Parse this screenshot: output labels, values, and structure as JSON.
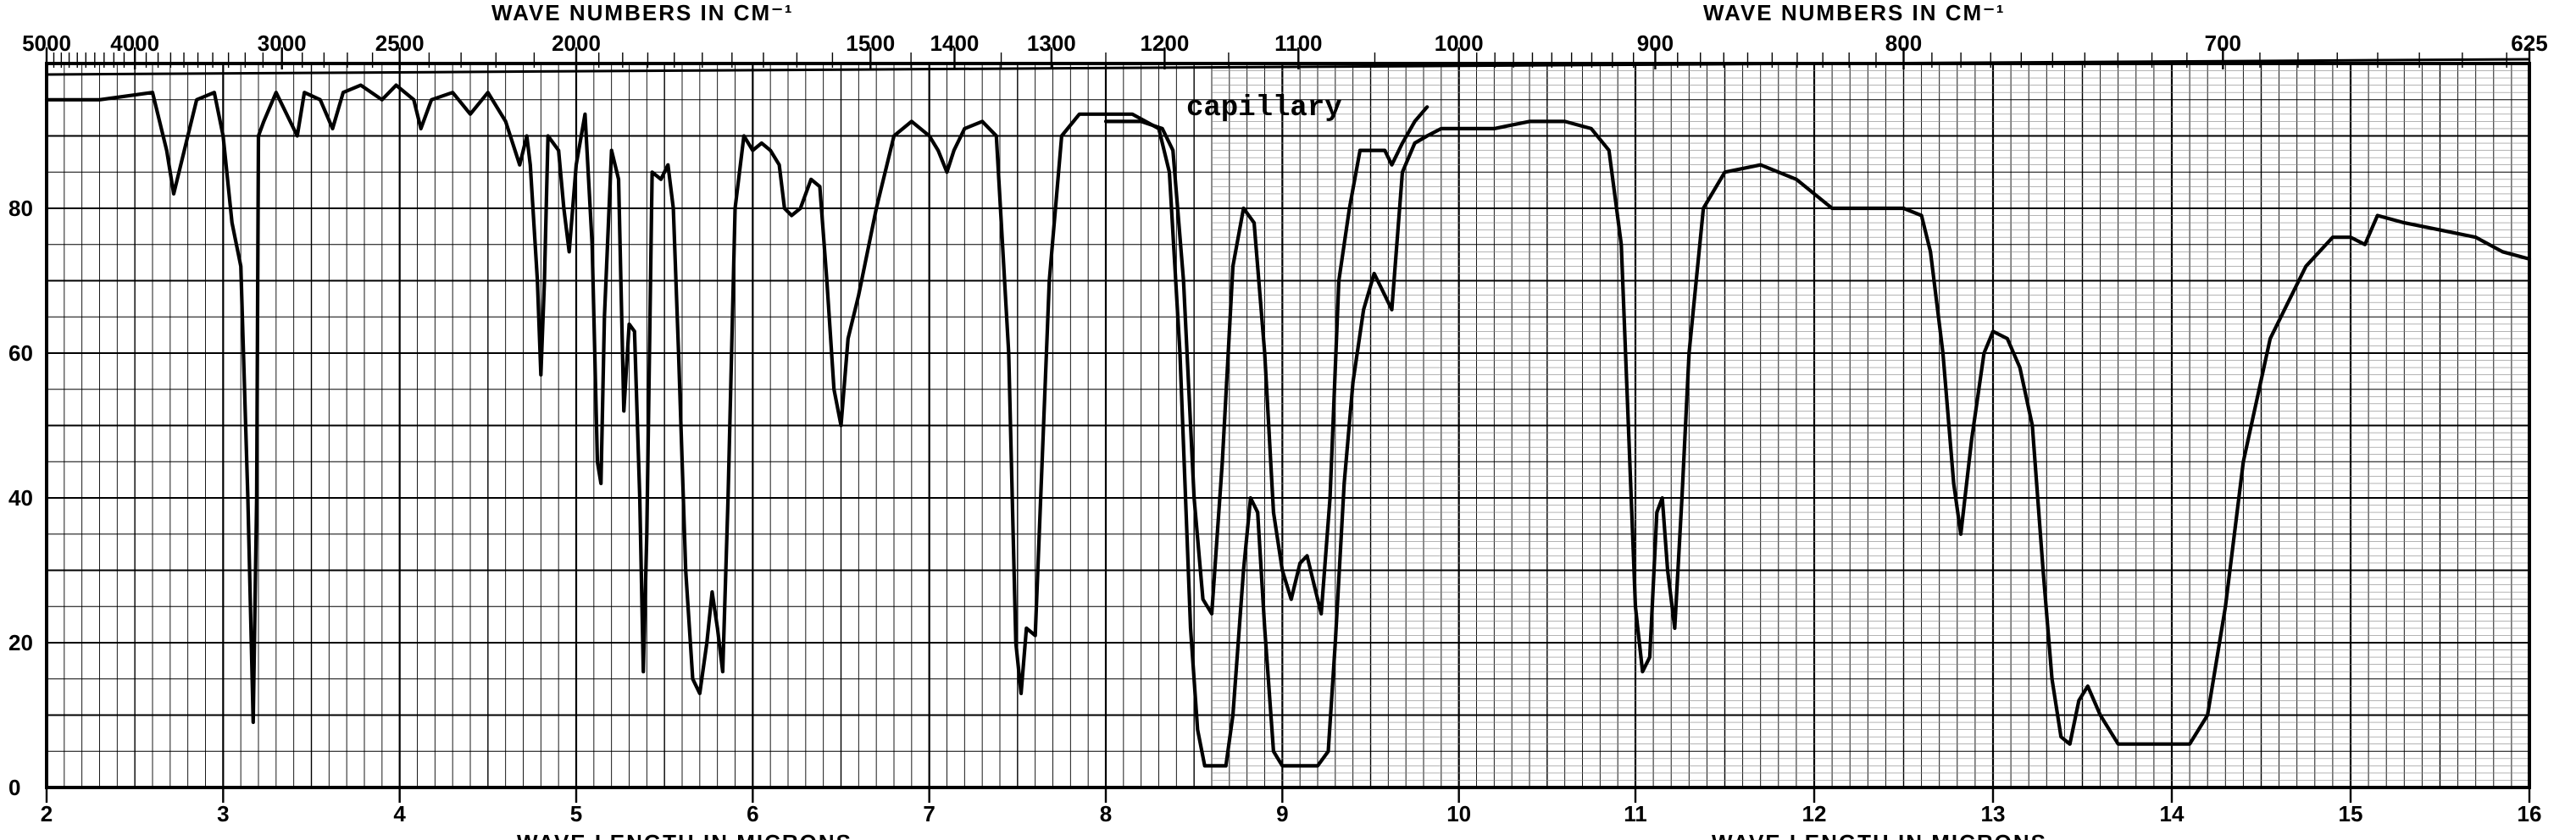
{
  "chart_data": {
    "type": "line",
    "title_top": "WAVE NUMBERS IN CM⁻¹",
    "title_bottom": "WAVE LENGTH IN MICRONS",
    "annotation": "capillary",
    "x_unit": "microns",
    "xlim": [
      2,
      16
    ],
    "ylim": [
      0,
      100
    ],
    "grid": true,
    "y_ticks": [
      "0",
      "20",
      "40",
      "60",
      "80"
    ],
    "x_ticks_bottom": [
      {
        "v": 2,
        "label": "2"
      },
      {
        "v": 3,
        "label": "3"
      },
      {
        "v": 4,
        "label": "4"
      },
      {
        "v": 5,
        "label": "5"
      },
      {
        "v": 6,
        "label": "6"
      },
      {
        "v": 7,
        "label": "7"
      },
      {
        "v": 8,
        "label": "8"
      },
      {
        "v": 9,
        "label": "9"
      },
      {
        "v": 10,
        "label": "10"
      },
      {
        "v": 11,
        "label": "11"
      },
      {
        "v": 12,
        "label": "12"
      },
      {
        "v": 13,
        "label": "13"
      },
      {
        "v": 14,
        "label": "14"
      },
      {
        "v": 15,
        "label": "15"
      },
      {
        "v": 16,
        "label": "16"
      }
    ],
    "x_ticks_top": [
      {
        "v": 2.0,
        "label": "5000"
      },
      {
        "v": 2.5,
        "label": "4000"
      },
      {
        "v": 3.333,
        "label": "3000"
      },
      {
        "v": 4.0,
        "label": "2500"
      },
      {
        "v": 5.0,
        "label": "2000"
      },
      {
        "v": 6.667,
        "label": "1500"
      },
      {
        "v": 7.143,
        "label": "1400"
      },
      {
        "v": 7.692,
        "label": "1300"
      },
      {
        "v": 8.333,
        "label": "1200"
      },
      {
        "v": 9.091,
        "label": "1100"
      },
      {
        "v": 10.0,
        "label": "1000"
      },
      {
        "v": 11.111,
        "label": "900"
      },
      {
        "v": 12.5,
        "label": "800"
      },
      {
        "v": 14.286,
        "label": "700"
      },
      {
        "v": 16.0,
        "label": "625"
      }
    ],
    "series": [
      {
        "values": [
          [
            2.0,
            95
          ],
          [
            2.3,
            95
          ],
          [
            2.6,
            96
          ],
          [
            2.68,
            88
          ],
          [
            2.72,
            82
          ],
          [
            2.78,
            88
          ],
          [
            2.85,
            95
          ],
          [
            2.95,
            96
          ],
          [
            3.0,
            90
          ],
          [
            3.05,
            78
          ],
          [
            3.1,
            72
          ],
          [
            3.14,
            40
          ],
          [
            3.17,
            9
          ],
          [
            3.19,
            40
          ],
          [
            3.2,
            90
          ],
          [
            3.23,
            92
          ],
          [
            3.3,
            96
          ],
          [
            3.38,
            92
          ],
          [
            3.42,
            90
          ],
          [
            3.46,
            96
          ],
          [
            3.55,
            95
          ],
          [
            3.62,
            91
          ],
          [
            3.68,
            96
          ],
          [
            3.78,
            97
          ],
          [
            3.9,
            95
          ],
          [
            3.98,
            97
          ],
          [
            4.08,
            95
          ],
          [
            4.12,
            91
          ],
          [
            4.18,
            95
          ],
          [
            4.3,
            96
          ],
          [
            4.4,
            93
          ],
          [
            4.5,
            96
          ],
          [
            4.6,
            92
          ],
          [
            4.68,
            86
          ],
          [
            4.72,
            90
          ],
          [
            4.74,
            86
          ],
          [
            4.78,
            70
          ],
          [
            4.8,
            57
          ],
          [
            4.82,
            70
          ],
          [
            4.84,
            90
          ],
          [
            4.9,
            88
          ],
          [
            4.93,
            80
          ],
          [
            4.96,
            74
          ],
          [
            5.0,
            86
          ],
          [
            5.05,
            93
          ],
          [
            5.09,
            75
          ],
          [
            5.12,
            45
          ],
          [
            5.14,
            42
          ],
          [
            5.16,
            65
          ],
          [
            5.2,
            88
          ],
          [
            5.24,
            84
          ],
          [
            5.27,
            52
          ],
          [
            5.3,
            64
          ],
          [
            5.33,
            63
          ],
          [
            5.36,
            40
          ],
          [
            5.38,
            16
          ],
          [
            5.4,
            35
          ],
          [
            5.43,
            85
          ],
          [
            5.48,
            84
          ],
          [
            5.52,
            86
          ],
          [
            5.55,
            80
          ],
          [
            5.58,
            60
          ],
          [
            5.62,
            30
          ],
          [
            5.66,
            15
          ],
          [
            5.7,
            13
          ],
          [
            5.74,
            20
          ],
          [
            5.77,
            27
          ],
          [
            5.8,
            22
          ],
          [
            5.83,
            16
          ],
          [
            5.86,
            40
          ],
          [
            5.9,
            80
          ],
          [
            5.95,
            90
          ],
          [
            6.0,
            88
          ],
          [
            6.05,
            89
          ],
          [
            6.1,
            88
          ],
          [
            6.15,
            86
          ],
          [
            6.18,
            80
          ],
          [
            6.22,
            79
          ],
          [
            6.27,
            80
          ],
          [
            6.33,
            84
          ],
          [
            6.38,
            83
          ],
          [
            6.42,
            70
          ],
          [
            6.46,
            55
          ],
          [
            6.5,
            50
          ],
          [
            6.54,
            62
          ],
          [
            6.6,
            68
          ],
          [
            6.7,
            80
          ],
          [
            6.8,
            90
          ],
          [
            6.9,
            92
          ],
          [
            7.0,
            90
          ],
          [
            7.05,
            88
          ],
          [
            7.1,
            85
          ],
          [
            7.14,
            88
          ],
          [
            7.2,
            91
          ],
          [
            7.3,
            92
          ],
          [
            7.38,
            90
          ],
          [
            7.45,
            60
          ],
          [
            7.49,
            20
          ],
          [
            7.52,
            13
          ],
          [
            7.55,
            22
          ],
          [
            7.6,
            21
          ],
          [
            7.68,
            70
          ],
          [
            7.75,
            90
          ],
          [
            7.85,
            93
          ],
          [
            8.0,
            93
          ],
          [
            8.15,
            93
          ],
          [
            8.3,
            91
          ],
          [
            8.36,
            85
          ],
          [
            8.42,
            60
          ],
          [
            8.48,
            22
          ],
          [
            8.52,
            8
          ],
          [
            8.56,
            3
          ],
          [
            8.62,
            3
          ],
          [
            8.68,
            3
          ],
          [
            8.72,
            10
          ],
          [
            8.78,
            30
          ],
          [
            8.82,
            40
          ],
          [
            8.86,
            38
          ],
          [
            8.9,
            22
          ],
          [
            8.95,
            5
          ],
          [
            9.0,
            3
          ],
          [
            9.1,
            3
          ],
          [
            9.2,
            3
          ],
          [
            9.26,
            5
          ],
          [
            9.3,
            20
          ],
          [
            9.35,
            42
          ],
          [
            9.4,
            56
          ],
          [
            9.46,
            66
          ],
          [
            9.52,
            71
          ],
          [
            9.58,
            68
          ],
          [
            9.62,
            66
          ],
          [
            9.68,
            85
          ],
          [
            9.75,
            89
          ],
          [
            9.82,
            90
          ],
          [
            9.9,
            91
          ],
          [
            10.0,
            91
          ],
          [
            10.2,
            91
          ],
          [
            10.4,
            92
          ],
          [
            10.6,
            92
          ],
          [
            10.75,
            91
          ],
          [
            10.85,
            88
          ],
          [
            10.92,
            75
          ],
          [
            10.96,
            50
          ],
          [
            11.0,
            25
          ],
          [
            11.04,
            16
          ],
          [
            11.08,
            18
          ],
          [
            11.12,
            38
          ],
          [
            11.15,
            40
          ],
          [
            11.18,
            30
          ],
          [
            11.22,
            22
          ],
          [
            11.26,
            40
          ],
          [
            11.3,
            60
          ],
          [
            11.38,
            80
          ],
          [
            11.5,
            85
          ],
          [
            11.7,
            86
          ],
          [
            11.9,
            84
          ],
          [
            12.1,
            80
          ],
          [
            12.3,
            80
          ],
          [
            12.5,
            80
          ],
          [
            12.6,
            79
          ],
          [
            12.65,
            74
          ],
          [
            12.72,
            60
          ],
          [
            12.78,
            42
          ],
          [
            12.82,
            35
          ],
          [
            12.88,
            48
          ],
          [
            12.95,
            60
          ],
          [
            13.0,
            63
          ],
          [
            13.08,
            62
          ],
          [
            13.15,
            58
          ],
          [
            13.22,
            50
          ],
          [
            13.28,
            30
          ],
          [
            13.33,
            15
          ],
          [
            13.38,
            7
          ],
          [
            13.43,
            6
          ],
          [
            13.48,
            12
          ],
          [
            13.53,
            14
          ],
          [
            13.6,
            10
          ],
          [
            13.7,
            6
          ],
          [
            13.85,
            6
          ],
          [
            14.0,
            6
          ],
          [
            14.1,
            6
          ],
          [
            14.2,
            10
          ],
          [
            14.3,
            25
          ],
          [
            14.4,
            45
          ],
          [
            14.55,
            62
          ],
          [
            14.75,
            72
          ],
          [
            14.9,
            76
          ],
          [
            15.0,
            76
          ],
          [
            15.08,
            75
          ],
          [
            15.15,
            79
          ],
          [
            15.3,
            78
          ],
          [
            15.5,
            77
          ],
          [
            15.7,
            76
          ],
          [
            15.85,
            74
          ],
          [
            16.0,
            73
          ]
        ]
      },
      {
        "values": [
          [
            8.0,
            92
          ],
          [
            8.2,
            92
          ],
          [
            8.32,
            91
          ],
          [
            8.38,
            88
          ],
          [
            8.44,
            70
          ],
          [
            8.5,
            40
          ],
          [
            8.55,
            26
          ],
          [
            8.6,
            24
          ],
          [
            8.66,
            45
          ],
          [
            8.72,
            72
          ],
          [
            8.78,
            80
          ],
          [
            8.84,
            78
          ],
          [
            8.9,
            60
          ],
          [
            8.95,
            38
          ],
          [
            9.0,
            30
          ],
          [
            9.05,
            26
          ],
          [
            9.1,
            31
          ],
          [
            9.14,
            32
          ],
          [
            9.18,
            28
          ],
          [
            9.22,
            24
          ],
          [
            9.27,
            40
          ],
          [
            9.32,
            70
          ],
          [
            9.38,
            80
          ],
          [
            9.44,
            88
          ],
          [
            9.52,
            88
          ],
          [
            9.58,
            88
          ],
          [
            9.62,
            86
          ],
          [
            9.68,
            89
          ],
          [
            9.75,
            92
          ],
          [
            9.82,
            94
          ]
        ]
      }
    ]
  }
}
